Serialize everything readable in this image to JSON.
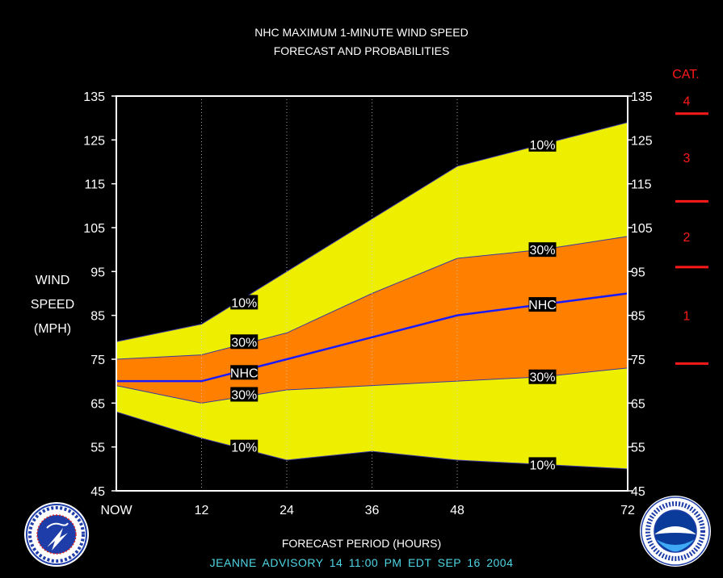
{
  "title": {
    "line1": "NHC MAXIMUM 1-MINUTE WIND SPEED",
    "line2": "FORECAST AND PROBABILITIES"
  },
  "y_axis_label": [
    "WIND",
    "SPEED",
    "(MPH)"
  ],
  "x_axis_label": "FORECAST PERIOD (HOURS)",
  "advisory": "JEANNE   ADVISORY  14 11:00 PM EDT SEP 16 2004",
  "colors": {
    "background": "#000000",
    "band_10": "#eeee00",
    "band_30": "#ff7f00",
    "nhc_line": "#1a1aff",
    "category": "#ff1a1a",
    "advisory_text": "#4fd6e6"
  },
  "logos": [
    "national-weather-service-logo",
    "noaa-logo"
  ],
  "chart_data": {
    "type": "area",
    "title": "NHC MAXIMUM 1-MINUTE WIND SPEED FORECAST AND PROBABILITIES",
    "xlabel": "FORECAST PERIOD (HOURS)",
    "ylabel": "WIND SPEED (MPH)",
    "x": [
      0,
      12,
      24,
      36,
      48,
      72
    ],
    "x_tick_labels": [
      "NOW",
      "12",
      "24",
      "36",
      "48",
      "72"
    ],
    "xlim": [
      0,
      72
    ],
    "ylim": [
      45,
      135
    ],
    "y_ticks": [
      45,
      55,
      65,
      75,
      85,
      95,
      105,
      115,
      125,
      135
    ],
    "grid": "vertical dotted",
    "series": [
      {
        "name": "10%",
        "role": "upper 10%",
        "x": [
          0,
          12,
          24,
          36,
          48,
          60,
          72
        ],
        "values": [
          79,
          83,
          95,
          107,
          119,
          124,
          129
        ]
      },
      {
        "name": "30%",
        "role": "upper 30%",
        "x": [
          0,
          12,
          24,
          36,
          48,
          60,
          72
        ],
        "values": [
          75,
          76,
          81,
          90,
          98,
          100,
          103
        ]
      },
      {
        "name": "NHC",
        "role": "forecast",
        "x": [
          0,
          12,
          24,
          36,
          48,
          60,
          72
        ],
        "values": [
          70,
          70,
          75,
          80,
          85,
          87.5,
          90
        ]
      },
      {
        "name": "30%",
        "role": "lower 30%",
        "x": [
          0,
          12,
          24,
          36,
          48,
          60,
          72
        ],
        "values": [
          69,
          65,
          68,
          69,
          70,
          71,
          73
        ]
      },
      {
        "name": "10%",
        "role": "lower 10%",
        "x": [
          0,
          12,
          24,
          36,
          48,
          60,
          72
        ],
        "values": [
          63,
          57,
          52,
          54,
          52,
          51,
          50
        ]
      }
    ],
    "band_labels": [
      {
        "text": "10%",
        "x": 18,
        "y": 88
      },
      {
        "text": "30%",
        "x": 18,
        "y": 79
      },
      {
        "text": "NHC",
        "x": 18,
        "y": 72
      },
      {
        "text": "30%",
        "x": 18,
        "y": 67
      },
      {
        "text": "10%",
        "x": 18,
        "y": 55
      },
      {
        "text": "10%",
        "x": 60,
        "y": 124
      },
      {
        "text": "30%",
        "x": 60,
        "y": 100
      },
      {
        "text": "NHC",
        "x": 60,
        "y": 87.5
      },
      {
        "text": "30%",
        "x": 60,
        "y": 71
      },
      {
        "text": "10%",
        "x": 60,
        "y": 51
      }
    ],
    "categories": {
      "title": "CAT.",
      "thresholds": [
        74,
        96,
        111,
        131
      ],
      "labels": [
        {
          "text": "1",
          "y": 85
        },
        {
          "text": "2",
          "y": 103
        },
        {
          "text": "3",
          "y": 121
        },
        {
          "text": "4",
          "y": 134
        }
      ]
    }
  }
}
